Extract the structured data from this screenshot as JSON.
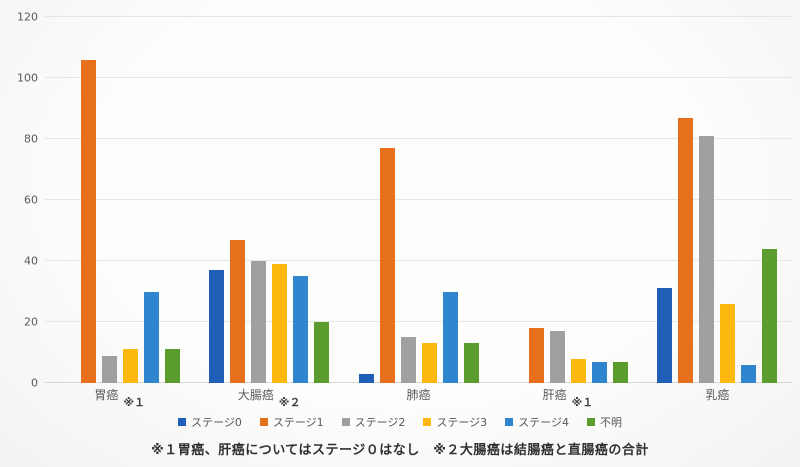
{
  "chart_data": {
    "type": "bar",
    "title": "",
    "xlabel": "",
    "ylabel": "",
    "categories": [
      "胃癌",
      "大腸癌",
      "肺癌",
      "肝癌",
      "乳癌"
    ],
    "category_notes": [
      "※１",
      "※２",
      "",
      "※１",
      ""
    ],
    "series": [
      {
        "name": "ステージ0",
        "color": "#1f5fb8",
        "values": [
          null,
          37,
          3,
          null,
          31
        ]
      },
      {
        "name": "ステージ1",
        "color": "#e7701c",
        "values": [
          106,
          47,
          77,
          18,
          87
        ]
      },
      {
        "name": "ステージ2",
        "color": "#9fa0a1",
        "values": [
          9,
          40,
          15,
          17,
          81
        ]
      },
      {
        "name": "ステージ3",
        "color": "#fcb80f",
        "values": [
          11,
          39,
          13,
          8,
          26
        ]
      },
      {
        "name": "ステージ4",
        "color": "#2f86ce",
        "values": [
          30,
          35,
          30,
          7,
          6
        ]
      },
      {
        "name": "不明",
        "color": "#5a9c2e",
        "values": [
          11,
          20,
          13,
          7,
          44
        ]
      }
    ],
    "ylim": [
      0,
      120
    ],
    "yticks": [
      0,
      20,
      40,
      60,
      80,
      100,
      120
    ],
    "grid": true,
    "legend_position": "bottom",
    "axis_text_color": "#595959",
    "gridline_color": "#e7e6e4",
    "footnote": "※１胃癌、肝癌についてはステージ０はなし　※２大腸癌は結腸癌と直腸癌の合計"
  }
}
